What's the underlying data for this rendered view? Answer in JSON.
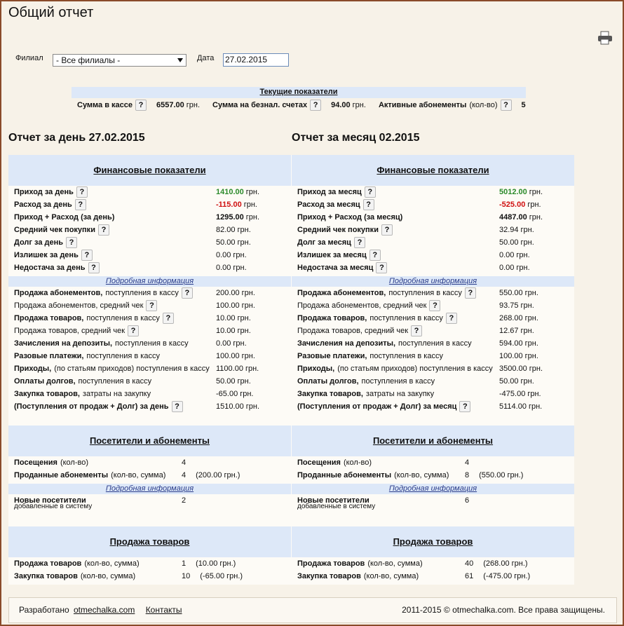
{
  "header": {
    "title": "Общий отчет"
  },
  "filters": {
    "branch_label": "Филиал",
    "branch_value": "- Все филиалы -",
    "date_label": "Дата",
    "date_value": "27.02.2015"
  },
  "current": {
    "title": "Текущие показатели",
    "items": [
      {
        "label": "Сумма в кассе",
        "help": "?",
        "value": "6557.00",
        "unit": "грн."
      },
      {
        "label": "Сумма на безнал. счетах",
        "help": "?",
        "value": "94.00",
        "unit": "грн."
      },
      {
        "label": "Активные абонементы",
        "note": "(кол-во)",
        "help": "?",
        "value": "5"
      }
    ]
  },
  "reports": [
    {
      "title": "Отчет за день 27.02.2015",
      "sections": [
        {
          "title": "Финансовые показатели",
          "rows": [
            {
              "label": "Приход за день",
              "help": "?",
              "value": "1410.00",
              "unit": "грн.",
              "color": "#2a8a2a",
              "strong": true
            },
            {
              "label": "Расход за день",
              "help": "?",
              "value": "-115.00",
              "unit": "грн.",
              "color": "#d01010",
              "strong": true
            },
            {
              "label": "Приход + Расход (за день)",
              "value": "1295.00",
              "unit": "грн.",
              "strong": true
            },
            {
              "label": "Средний чек покупки",
              "help": "?",
              "value": "82.00",
              "unit": "грн."
            },
            {
              "label": "Долг за день",
              "help": "?",
              "value": "50.00",
              "unit": "грн."
            },
            {
              "label": "Излишек за день",
              "help": "?",
              "value": "0.00",
              "unit": "грн."
            },
            {
              "label": "Недостача за день",
              "help": "?",
              "value": "0.00",
              "unit": "грн."
            }
          ],
          "detail_link": "Подробная информация",
          "detail_rows": [
            {
              "label": "Продажа абонементов,",
              "note": "поступления в кассу",
              "help": "?",
              "value": "200.00",
              "unit": "грн."
            },
            {
              "note": "Продажа абонементов, средний чек",
              "help": "?",
              "value": "100.00",
              "unit": "грн."
            },
            {
              "label": "Продажа товаров,",
              "note": "поступления в кассу",
              "help": "?",
              "value": "10.00",
              "unit": "грн."
            },
            {
              "note": "Продажа товаров, средний чек",
              "help": "?",
              "value": "10.00",
              "unit": "грн."
            },
            {
              "label": "Зачисления на депозиты,",
              "note": "поступления в кассу",
              "value": "0.00",
              "unit": "грн."
            },
            {
              "label": "Разовые платежи,",
              "note": "поступления в кассу",
              "value": "100.00",
              "unit": "грн."
            },
            {
              "label": "Приходы,",
              "note": "(по статьям приходов) поступления в кассу",
              "value": "1100.00",
              "unit": "грн."
            },
            {
              "label": "Оплаты долгов,",
              "note": "поступления в кассу",
              "value": "50.00",
              "unit": "грн."
            },
            {
              "label": "Закупка товаров,",
              "note": "затраты на закупку",
              "value": "-65.00",
              "unit": "грн."
            },
            {
              "label": "(Поступления от продаж + Долг) за день",
              "help": "?",
              "value": "1510.00",
              "unit": "грн."
            }
          ]
        },
        {
          "title": "Посетители и абонементы",
          "rows": [
            {
              "label": "Посещения",
              "note": "(кол-во)",
              "value": "4"
            },
            {
              "label": "Проданные абонементы",
              "note": "(кол-во, сумма)",
              "value": "4",
              "extra": "(200.00 грн.)"
            }
          ],
          "detail_link": "Подробная информация",
          "detail_rows": [
            {
              "label": "Новые посетители",
              "sublabel": "добавленные в систему",
              "value": "2"
            }
          ]
        },
        {
          "title": "Продажа товаров",
          "rows": [
            {
              "label": "Продажа товаров",
              "note": "(кол-во, сумма)",
              "value": "1",
              "extra": "(10.00 грн.)"
            },
            {
              "label": "Закупка товаров",
              "note": "(кол-во, сумма)",
              "value": "10",
              "extra": "(-65.00 грн.)"
            }
          ]
        }
      ]
    },
    {
      "title": "Отчет за месяц 02.2015",
      "sections": [
        {
          "title": "Финансовые показатели",
          "rows": [
            {
              "label": "Приход за месяц",
              "help": "?",
              "value": "5012.00",
              "unit": "грн.",
              "color": "#2a8a2a",
              "strong": true
            },
            {
              "label": "Расход за месяц",
              "help": "?",
              "value": "-525.00",
              "unit": "грн.",
              "color": "#d01010",
              "strong": true
            },
            {
              "label": "Приход + Расход (за месяц)",
              "value": "4487.00",
              "unit": "грн.",
              "strong": true
            },
            {
              "label": "Средний чек покупки",
              "help": "?",
              "value": "32.94",
              "unit": "грн."
            },
            {
              "label": "Долг за месяц",
              "help": "?",
              "value": "50.00",
              "unit": "грн."
            },
            {
              "label": "Излишек за месяц",
              "help": "?",
              "value": "0.00",
              "unit": "грн."
            },
            {
              "label": "Недостача за месяц",
              "help": "?",
              "value": "0.00",
              "unit": "грн."
            }
          ],
          "detail_link": "Подробная информация",
          "detail_rows": [
            {
              "label": "Продажа абонементов,",
              "note": "поступления в кассу",
              "help": "?",
              "value": "550.00",
              "unit": "грн."
            },
            {
              "note": "Продажа абонементов, средний чек",
              "help": "?",
              "value": "93.75",
              "unit": "грн."
            },
            {
              "label": "Продажа товаров,",
              "note": "поступления в кассу",
              "help": "?",
              "value": "268.00",
              "unit": "грн."
            },
            {
              "note": "Продажа товаров, средний чек",
              "help": "?",
              "value": "12.67",
              "unit": "грн."
            },
            {
              "label": "Зачисления на депозиты,",
              "note": "поступления в кассу",
              "value": "594.00",
              "unit": "грн."
            },
            {
              "label": "Разовые платежи,",
              "note": "поступления в кассу",
              "value": "100.00",
              "unit": "грн."
            },
            {
              "label": "Приходы,",
              "note": "(по статьям приходов) поступления в кассу",
              "value": "3500.00",
              "unit": "грн."
            },
            {
              "label": "Оплаты долгов,",
              "note": "поступления в кассу",
              "value": "50.00",
              "unit": "грн."
            },
            {
              "label": "Закупка товаров,",
              "note": "затраты на закупку",
              "value": "-475.00",
              "unit": "грн."
            },
            {
              "label": "(Поступления от продаж + Долг) за месяц",
              "help": "?",
              "value": "5114.00",
              "unit": "грн."
            }
          ]
        },
        {
          "title": "Посетители и абонементы",
          "rows": [
            {
              "label": "Посещения",
              "note": "(кол-во)",
              "value": "4"
            },
            {
              "label": "Проданные абонементы",
              "note": "(кол-во, сумма)",
              "value": "8",
              "extra": "(550.00 грн.)"
            }
          ],
          "detail_link": "Подробная информация",
          "detail_rows": [
            {
              "label": "Новые посетители",
              "sublabel": "добавленные в систему",
              "value": "6"
            }
          ]
        },
        {
          "title": "Продажа товаров",
          "rows": [
            {
              "label": "Продажа товаров",
              "note": "(кол-во, сумма)",
              "value": "40",
              "extra": "(268.00 грн.)"
            },
            {
              "label": "Закупка товаров",
              "note": "(кол-во, сумма)",
              "value": "61",
              "extra": "(-475.00 грн.)"
            }
          ]
        }
      ]
    }
  ],
  "footer": {
    "developed": "Разработано",
    "site_link": "otmechalka.com",
    "contacts": "Контакты",
    "copyright": "2011-2015 © otmechalka.com. Все права защищены."
  }
}
